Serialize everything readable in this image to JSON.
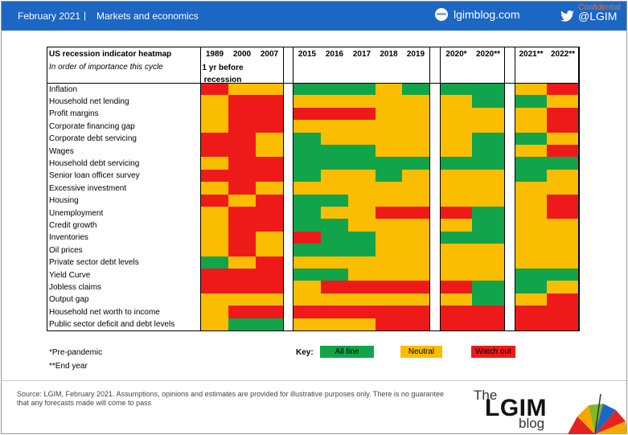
{
  "header": {
    "date": "February 2021",
    "separator": "|",
    "section": "Markets and economics",
    "blog_icon_text": "www",
    "blog_name": "lgimblog.com",
    "twitter_handle": "@LGIM",
    "confidential": "Confidential"
  },
  "chart_data": {
    "type": "heatmap",
    "title": "US recession indicator heatmap",
    "subtitle": "In order of importance this cycle",
    "lead_note": "1 yr before recession",
    "columns": [
      "1989",
      "2000",
      "2007",
      "2015",
      "2016",
      "2017",
      "2018",
      "2019",
      "2020*",
      "2020**",
      "2021**",
      "2022**"
    ],
    "rows": [
      {
        "label": "Inflation",
        "values": [
          "red",
          "amber",
          "amber",
          "green",
          "green",
          "green",
          "amber",
          "green",
          "green",
          "green",
          "amber",
          "red"
        ]
      },
      {
        "label": "Household net lending",
        "values": [
          "amber",
          "red",
          "red",
          "amber",
          "amber",
          "amber",
          "amber",
          "amber",
          "amber",
          "green",
          "green",
          "amber"
        ]
      },
      {
        "label": "Profit margins",
        "values": [
          "amber",
          "red",
          "red",
          "red",
          "red",
          "red",
          "amber",
          "amber",
          "amber",
          "amber",
          "amber",
          "red"
        ]
      },
      {
        "label": "Corporate financing gap",
        "values": [
          "amber",
          "red",
          "red",
          "amber",
          "amber",
          "amber",
          "amber",
          "amber",
          "amber",
          "amber",
          "amber",
          "red"
        ]
      },
      {
        "label": "Corporate  debt servicing",
        "values": [
          "red",
          "red",
          "amber",
          "green",
          "amber",
          "amber",
          "amber",
          "amber",
          "amber",
          "green",
          "green",
          "amber"
        ]
      },
      {
        "label": "Wages",
        "values": [
          "red",
          "red",
          "amber",
          "green",
          "green",
          "green",
          "amber",
          "amber",
          "amber",
          "green",
          "amber",
          "red"
        ]
      },
      {
        "label": "Household  debt servicing",
        "values": [
          "amber",
          "red",
          "red",
          "green",
          "green",
          "green",
          "green",
          "green",
          "green",
          "green",
          "green",
          "green"
        ]
      },
      {
        "label": "Senior loan officer survey",
        "values": [
          "red",
          "red",
          "red",
          "green",
          "amber",
          "amber",
          "green",
          "amber",
          "amber",
          "amber",
          "green",
          "amber"
        ]
      },
      {
        "label": "Excessive investment",
        "values": [
          "amber",
          "red",
          "amber",
          "amber",
          "amber",
          "amber",
          "amber",
          "amber",
          "amber",
          "amber",
          "amber",
          "amber"
        ]
      },
      {
        "label": "Housing",
        "values": [
          "red",
          "amber",
          "red",
          "green",
          "green",
          "amber",
          "amber",
          "amber",
          "amber",
          "amber",
          "amber",
          "red"
        ]
      },
      {
        "label": "Unemployment",
        "values": [
          "amber",
          "red",
          "red",
          "green",
          "amber",
          "amber",
          "red",
          "red",
          "red",
          "green",
          "amber",
          "red"
        ]
      },
      {
        "label": "Credit growth",
        "values": [
          "amber",
          "red",
          "red",
          "green",
          "green",
          "amber",
          "amber",
          "amber",
          "amber",
          "green",
          "amber",
          "amber"
        ]
      },
      {
        "label": "Inventories",
        "values": [
          "amber",
          "red",
          "amber",
          "red",
          "green",
          "green",
          "amber",
          "amber",
          "green",
          "green",
          "amber",
          "amber"
        ]
      },
      {
        "label": "Oil prices",
        "values": [
          "amber",
          "red",
          "amber",
          "green",
          "green",
          "green",
          "amber",
          "amber",
          "amber",
          "amber",
          "amber",
          "amber"
        ]
      },
      {
        "label": "Private sector debt levels",
        "values": [
          "green",
          "amber",
          "red",
          "amber",
          "amber",
          "amber",
          "amber",
          "amber",
          "amber",
          "amber",
          "amber",
          "amber"
        ]
      },
      {
        "label": "Yield Curve",
        "values": [
          "red",
          "red",
          "red",
          "green",
          "green",
          "amber",
          "amber",
          "amber",
          "amber",
          "amber",
          "green",
          "green"
        ]
      },
      {
        "label": "Jobless claims",
        "values": [
          "red",
          "red",
          "red",
          "amber",
          "red",
          "red",
          "red",
          "red",
          "red",
          "green",
          "green",
          "amber"
        ]
      },
      {
        "label": "Output gap",
        "values": [
          "amber",
          "amber",
          "amber",
          "amber",
          "amber",
          "amber",
          "amber",
          "amber",
          "amber",
          "green",
          "amber",
          "red"
        ]
      },
      {
        "label": "Household  net worth to income",
        "values": [
          "amber",
          "red",
          "red",
          "red",
          "red",
          "red",
          "red",
          "red",
          "red",
          "red",
          "red",
          "red"
        ]
      },
      {
        "label": "Public sector deficit and debt levels",
        "values": [
          "amber",
          "green",
          "green",
          "amber",
          "amber",
          "amber",
          "red",
          "red",
          "red",
          "red",
          "red",
          "red"
        ]
      }
    ],
    "footnotes": [
      "*Pre-pandemic",
      "**End year"
    ],
    "key": {
      "title": "Key:",
      "items": [
        {
          "label": "All fine",
          "color": "green"
        },
        {
          "label": "Neutral",
          "color": "amber"
        },
        {
          "label": "Watch out",
          "color": "red"
        }
      ]
    },
    "colors": {
      "green": "#12a44a",
      "amber": "#fbbd00",
      "red": "#ee1a1a"
    }
  },
  "footer": {
    "source": "Source: LGIM,  February 2021. Assumptions, opinions and estimates are provided for illustrative purposes only. There is no guarantee that any forecasts made will come to pass",
    "logo_the": "The",
    "logo_lgim": "LGIM",
    "logo_blog": "blog"
  }
}
